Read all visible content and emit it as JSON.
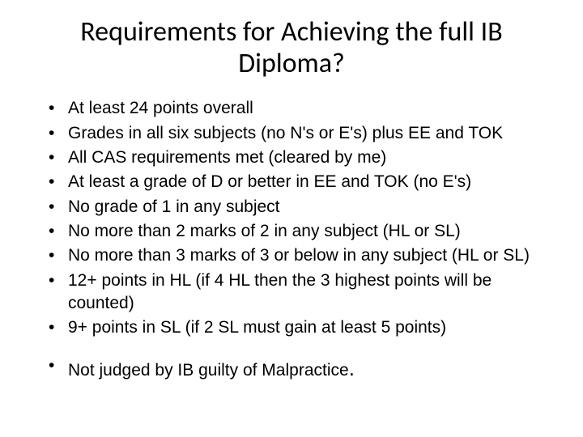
{
  "title": "Requirements for Achieving the full IB Diploma?",
  "bullets": {
    "main": [
      "At least 24 points overall",
      "Grades in all six subjects (no N's or E's) plus EE and TOK",
      "All CAS requirements met (cleared by me)",
      "At least a grade of D or better in EE and TOK (no E's)",
      "No grade of 1 in any subject",
      "No more than 2 marks of 2 in any subject (HL or SL)",
      "No more than 3 marks of 3 or below in any subject (HL or SL)",
      "12+ points in HL (if 4 HL then the 3 highest points will be counted)",
      "9+ points in SL (if 2 SL must gain at least 5 points)"
    ],
    "final": "Not judged by IB guilty of Malpractice"
  },
  "colors": {
    "background": "#ffffff",
    "text": "#000000"
  },
  "fonts": {
    "title_family": "Calibri",
    "body_family": "Arial",
    "title_size_pt": 34,
    "body_size_pt": 21
  }
}
